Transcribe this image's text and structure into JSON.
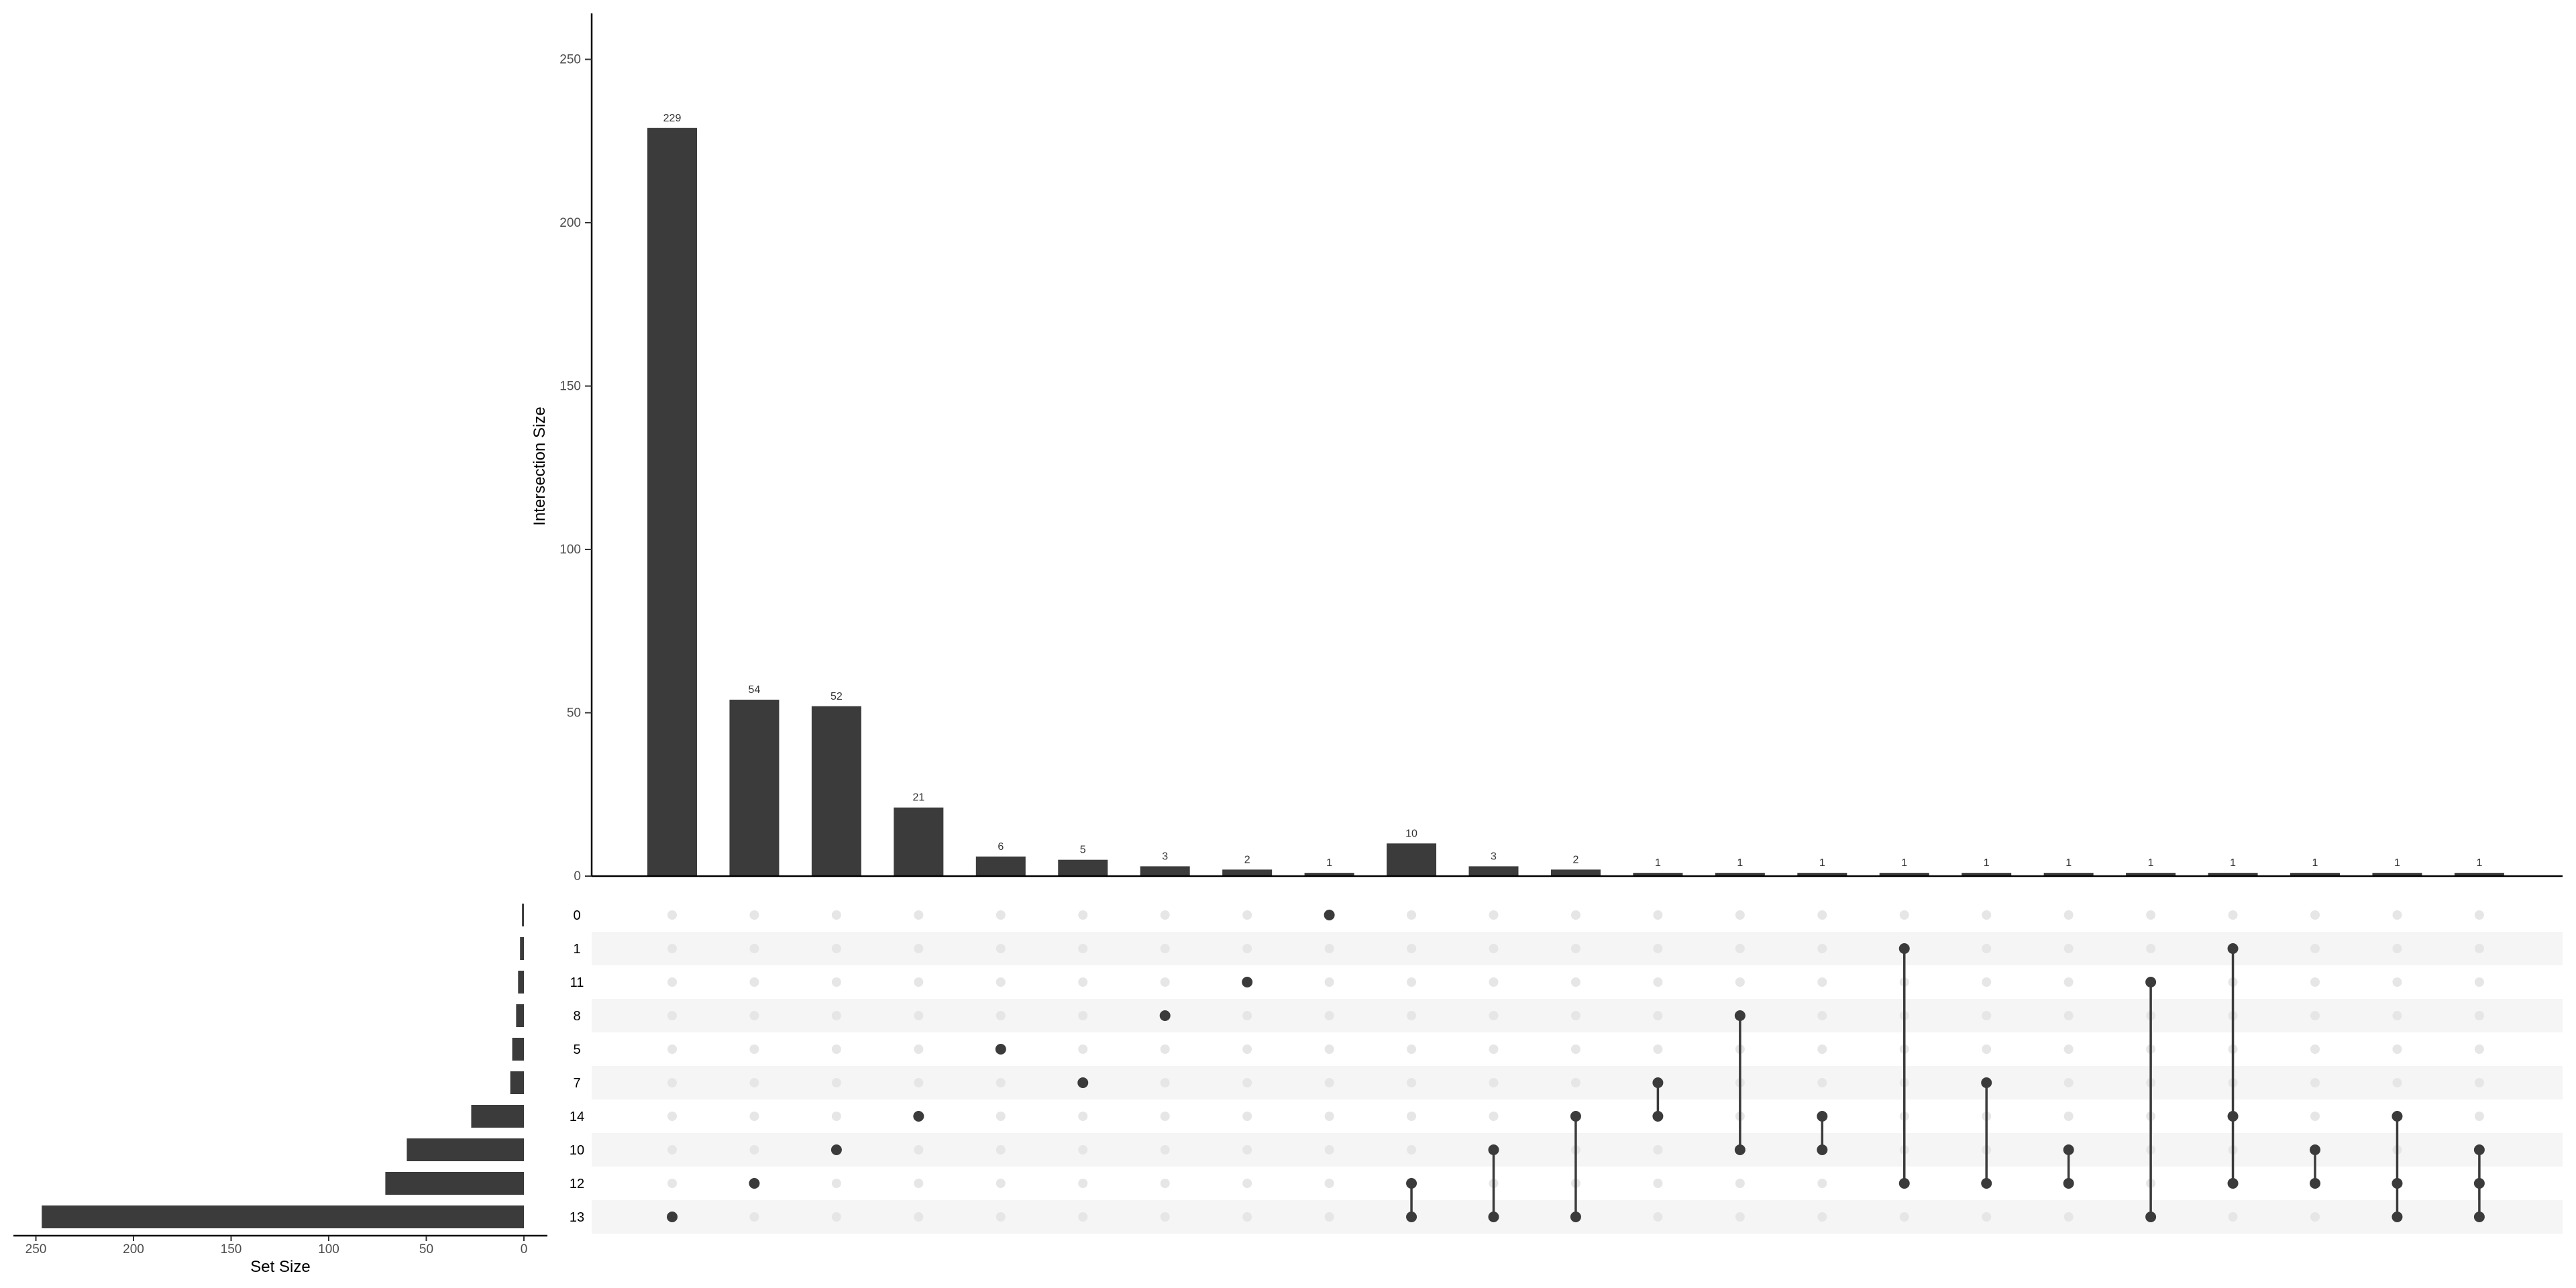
{
  "chart_data": {
    "type": "upset",
    "colors": {
      "bar": "#3b3b3b",
      "dot_active": "#3b3b3b",
      "dot_inactive": "#e6e6e6",
      "stripe": "#f5f5f5"
    },
    "intersection_axis": {
      "label": "Intersection Size",
      "ylim": [
        0,
        260
      ],
      "ticks": [
        0,
        50,
        100,
        150,
        200,
        250
      ]
    },
    "set_size_axis": {
      "label": "Set Size",
      "xlim": [
        260,
        0
      ],
      "ticks": [
        250,
        200,
        150,
        100,
        50,
        0
      ]
    },
    "sets": [
      "0",
      "1",
      "11",
      "8",
      "5",
      "7",
      "14",
      "10",
      "12",
      "13"
    ],
    "set_sizes": [
      1,
      2,
      3,
      4,
      6,
      7,
      27,
      60,
      71,
      247
    ],
    "intersections": [
      {
        "sets": [
          "13"
        ],
        "size": 229
      },
      {
        "sets": [
          "12"
        ],
        "size": 54
      },
      {
        "sets": [
          "10"
        ],
        "size": 52
      },
      {
        "sets": [
          "14"
        ],
        "size": 21
      },
      {
        "sets": [
          "5"
        ],
        "size": 6
      },
      {
        "sets": [
          "7"
        ],
        "size": 5
      },
      {
        "sets": [
          "8"
        ],
        "size": 3
      },
      {
        "sets": [
          "11"
        ],
        "size": 2
      },
      {
        "sets": [
          "0"
        ],
        "size": 1
      },
      {
        "sets": [
          "12",
          "13"
        ],
        "size": 10
      },
      {
        "sets": [
          "10",
          "13"
        ],
        "size": 3
      },
      {
        "sets": [
          "14",
          "13"
        ],
        "size": 2
      },
      {
        "sets": [
          "7",
          "14"
        ],
        "size": 1
      },
      {
        "sets": [
          "8",
          "10"
        ],
        "size": 1
      },
      {
        "sets": [
          "14",
          "10"
        ],
        "size": 1
      },
      {
        "sets": [
          "1",
          "12"
        ],
        "size": 1
      },
      {
        "sets": [
          "7",
          "12"
        ],
        "size": 1
      },
      {
        "sets": [
          "10",
          "12"
        ],
        "size": 1
      },
      {
        "sets": [
          "11",
          "13"
        ],
        "size": 1
      },
      {
        "sets": [
          "1",
          "14",
          "12"
        ],
        "size": 1
      },
      {
        "sets": [
          "10",
          "12"
        ],
        "size": 1
      },
      {
        "sets": [
          "14",
          "12",
          "13"
        ],
        "size": 1
      },
      {
        "sets": [
          "10",
          "12",
          "13"
        ],
        "size": 1
      }
    ]
  }
}
